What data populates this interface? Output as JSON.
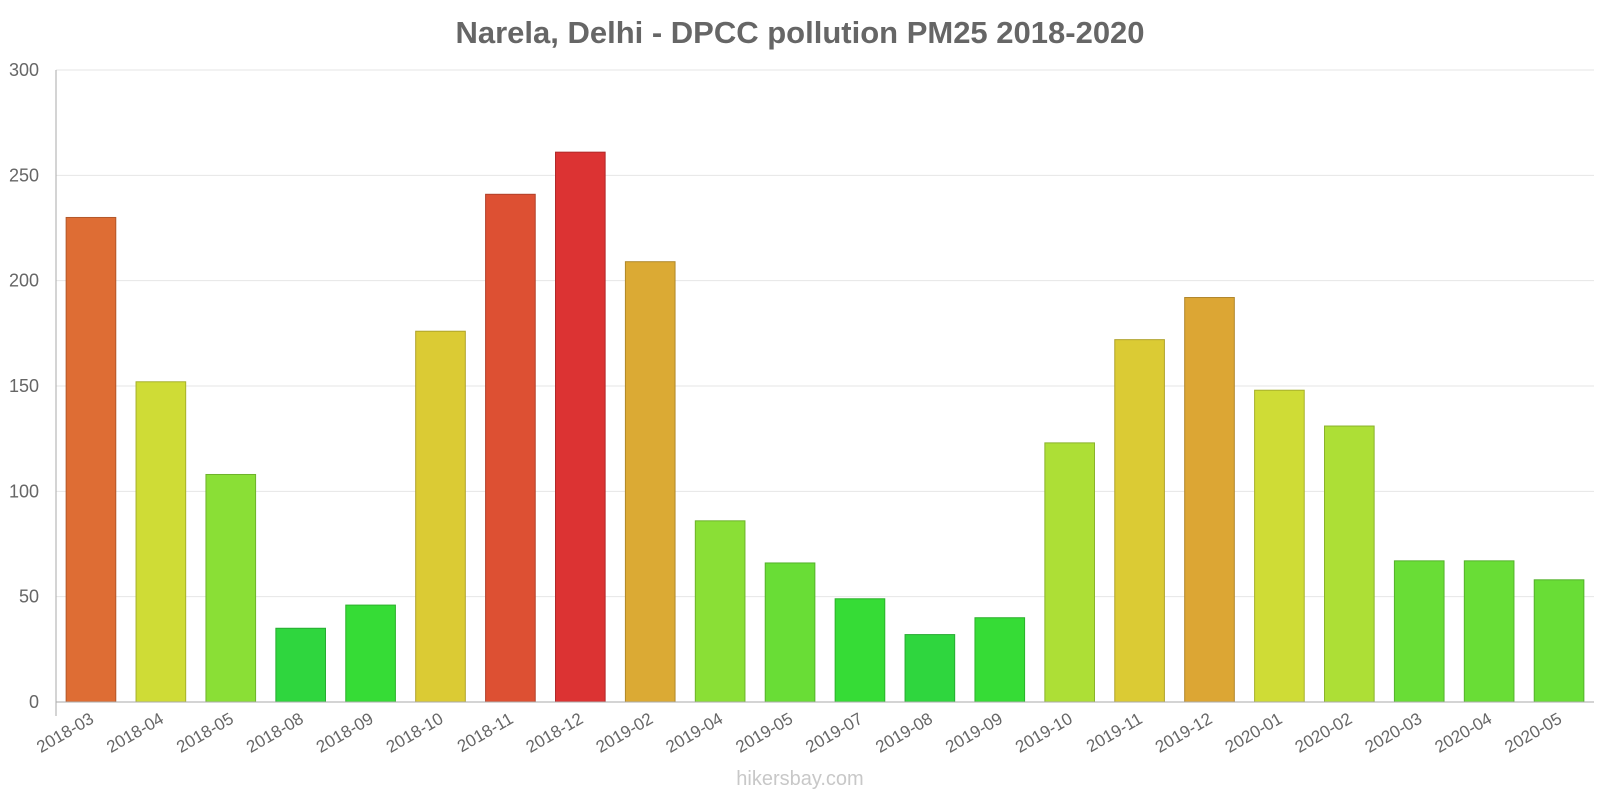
{
  "chart_data": {
    "type": "bar",
    "title": "Narela, Delhi - DPCC pollution PM25 2018-2020",
    "xlabel": "",
    "ylabel": "",
    "ylim": [
      0,
      300
    ],
    "yticks": [
      0,
      50,
      100,
      150,
      200,
      250,
      300
    ],
    "grid": true,
    "categories": [
      "2018-03",
      "2018-04",
      "2018-05",
      "2018-08",
      "2018-09",
      "2018-10",
      "2018-11",
      "2018-12",
      "2019-02",
      "2019-04",
      "2019-05",
      "2019-07",
      "2019-08",
      "2019-09",
      "2019-10",
      "2019-11",
      "2019-12",
      "2020-01",
      "2020-02",
      "2020-03",
      "2020-04",
      "2020-05"
    ],
    "values": [
      230,
      152,
      108,
      35,
      46,
      176,
      241,
      261,
      209,
      86,
      66,
      49,
      32,
      40,
      123,
      172,
      192,
      148,
      131,
      67,
      67,
      58
    ],
    "colors": [
      "#de6d34",
      "#cfdc36",
      "#8adf36",
      "#2fd63e",
      "#36dc36",
      "#dbcb34",
      "#dd5033",
      "#dc3333",
      "#dbaa34",
      "#8adf36",
      "#69dd36",
      "#36dc36",
      "#2fd63e",
      "#36dc36",
      "#addf36",
      "#dbcb34",
      "#dca634",
      "#cfdc36",
      "#addf36",
      "#69dd36",
      "#69dd36",
      "#69dd36"
    ]
  },
  "watermark": "hikersbay.com"
}
